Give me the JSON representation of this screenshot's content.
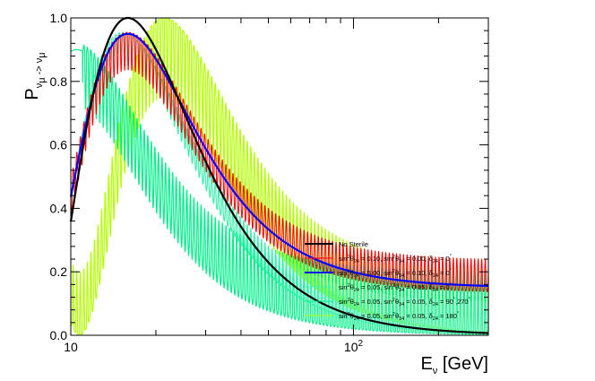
{
  "chart_data": {
    "type": "line",
    "title": "",
    "xlabel": {
      "main": "E",
      "sub": "ν",
      "unit": " [GeV]"
    },
    "ylabel": {
      "main": "P",
      "sub": "ν",
      "subsub1": "μ",
      "arrow": " -> ν",
      "subsub2": "μ"
    },
    "xscale": "log",
    "xlim": [
      10,
      300
    ],
    "ylim": [
      0,
      1
    ],
    "xticks": [
      {
        "value": 10,
        "label": "10",
        "exp": ""
      },
      {
        "value": 100,
        "label": "10",
        "exp": "2"
      }
    ],
    "yticks": [
      {
        "value": 0,
        "label": "0.0"
      },
      {
        "value": 0.2,
        "label": "0.2"
      },
      {
        "value": 0.4,
        "label": "0.4"
      },
      {
        "value": 0.6,
        "label": "0.6"
      },
      {
        "value": 0.8,
        "label": "0.8"
      },
      {
        "value": 1.0,
        "label": "1.0"
      }
    ],
    "legend_position": "bottom-right",
    "series": [
      {
        "id": "s-green-180",
        "name": "sin²θ24 = 0.05, sin²θ34 = 0.05, δ24 = 180°",
        "color": "#b3ff00",
        "width": 1.2,
        "model": {
          "type": "band",
          "dm2L": 33.7,
          "amp": 1.0,
          "offset": 0.0,
          "freq": 500,
          "bandLow": 0.25,
          "bandHigh": 0.2,
          "bandStartE": 10
        }
      },
      {
        "id": "s-teal-90",
        "name": "sin²θ24 = 0.05, sin²θ34 = 0.05, δ24 = 90°,270°",
        "color": "#00f08a",
        "width": 1.2,
        "model": {
          "type": "band",
          "dm2L": 16.5,
          "amp": 0.9,
          "offset": 0.0,
          "freq": 500,
          "bandLow": 0.2,
          "bandHigh": 0.2,
          "bandStartE": 11
        }
      },
      {
        "id": "s-teal-0",
        "name": "sin²θ24 = 0.05, sin²θ34 = 0.05, δ24 = 0°",
        "color": "#40f0b0",
        "width": 1.2,
        "model": {
          "type": "band",
          "dm2L": 24.0,
          "amp": 0.95,
          "offset": 0.0,
          "freq": 500,
          "bandLow": 0.06,
          "bandHigh": 0.1,
          "bandStartE": 12
        }
      },
      {
        "id": "s-red",
        "name": "sin²θ24 = 0.10, sin²θ34 = 0.00, δ24 = 0°",
        "color": "#ff0000",
        "width": 1.0,
        "model": {
          "type": "band",
          "dm2L": 25.0,
          "amp": 0.8,
          "offset": 0.15,
          "freq": 500,
          "bandLow": 0.12,
          "bandHigh": 0.1,
          "bandStartE": 10
        }
      },
      {
        "id": "s-blue",
        "name": "sin²θ24 = 0.00, sin²θ34 = 0.10, δ24 = 0°",
        "color": "#0000ff",
        "width": 2.2,
        "model": {
          "type": "line",
          "dm2L": 25.0,
          "amp": 0.8,
          "offset": 0.15
        }
      },
      {
        "id": "s-black",
        "name": "No Sterile",
        "color": "#000000",
        "width": 2.2,
        "model": {
          "type": "line",
          "dm2L": 25.0,
          "amp": 1.0,
          "offset": 0.0
        }
      }
    ],
    "legend": [
      {
        "color": "#000000",
        "width": 2,
        "text": "No Sterile",
        "rich": false
      },
      {
        "color": "#ff0000",
        "width": 1,
        "rich": true,
        "a": "0.10",
        "b": "0.00",
        "d": "0",
        "deg": "°"
      },
      {
        "color": "#0000ff",
        "width": 2,
        "rich": true,
        "a": "0.00",
        "b": "0.10",
        "d": "0",
        "deg": "°"
      },
      {
        "color": "#40f0b0",
        "width": 1,
        "rich": true,
        "a": "0.05",
        "b": "0.05",
        "d": "0",
        "deg": "°"
      },
      {
        "color": "#00f08a",
        "width": 1,
        "rich": true,
        "a": "0.05",
        "b": "0.05",
        "d": "90",
        "deg": "°",
        "extra": ",270",
        "extraDeg": "°"
      },
      {
        "color": "#b3ff00",
        "width": 1,
        "rich": true,
        "a": "0.05",
        "b": "0.05",
        "d": "180",
        "deg": "°"
      }
    ]
  }
}
